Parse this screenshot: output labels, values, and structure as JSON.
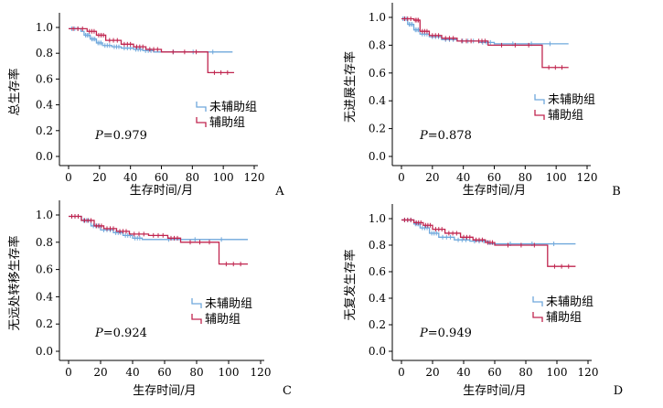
{
  "chart_data": [
    {
      "panel": "A",
      "type": "line",
      "ylabel": "总生存率",
      "xlabel": "生存时间/月",
      "xlim": [
        0,
        120
      ],
      "ylim": [
        0,
        1
      ],
      "xticks": [
        "0",
        "20",
        "40",
        "60",
        "80",
        "100",
        "120"
      ],
      "yticks": [
        "0.0",
        "0.2",
        "0.4",
        "0.6",
        "0.8",
        "1.0"
      ],
      "pvalue": "P=0.979",
      "series": [
        {
          "name": "未辅助组",
          "color": "#6fa8dc",
          "x": [
            0,
            8,
            10,
            14,
            18,
            22,
            28,
            34,
            42,
            48,
            55,
            106
          ],
          "y": [
            0.99,
            0.97,
            0.94,
            0.91,
            0.88,
            0.86,
            0.85,
            0.84,
            0.83,
            0.82,
            0.81,
            0.81
          ]
        },
        {
          "name": "辅助组",
          "color": "#c0254f",
          "x": [
            0,
            12,
            18,
            24,
            34,
            42,
            50,
            60,
            90,
            107
          ],
          "y": [
            0.99,
            0.97,
            0.94,
            0.9,
            0.87,
            0.85,
            0.83,
            0.81,
            0.65,
            0.65
          ]
        }
      ]
    },
    {
      "panel": "B",
      "type": "line",
      "ylabel": "无进展生存率",
      "xlabel": "生存时间/月",
      "xlim": [
        0,
        120
      ],
      "ylim": [
        0,
        1
      ],
      "xticks": [
        "0",
        "20",
        "40",
        "60",
        "80",
        "100",
        "120"
      ],
      "yticks": [
        "0.0",
        "0.2",
        "0.4",
        "0.6",
        "0.8",
        "1.0"
      ],
      "pvalue": "P=0.878",
      "series": [
        {
          "name": "未辅助组",
          "color": "#6fa8dc",
          "x": [
            0,
            4,
            8,
            12,
            18,
            26,
            36,
            50,
            60,
            108
          ],
          "y": [
            0.99,
            0.95,
            0.91,
            0.88,
            0.86,
            0.84,
            0.83,
            0.82,
            0.81,
            0.81
          ]
        },
        {
          "name": "辅助组",
          "color": "#c0254f",
          "x": [
            0,
            8,
            12,
            18,
            26,
            36,
            48,
            56,
            91,
            108
          ],
          "y": [
            0.99,
            0.98,
            0.9,
            0.87,
            0.85,
            0.83,
            0.83,
            0.8,
            0.64,
            0.64
          ]
        }
      ]
    },
    {
      "panel": "C",
      "type": "line",
      "ylabel": "无远处转移生存率",
      "xlabel": "生存时间/月",
      "xlim": [
        0,
        120
      ],
      "ylim": [
        0,
        1
      ],
      "xticks": [
        "0",
        "20",
        "40",
        "60",
        "80",
        "100",
        "120"
      ],
      "yticks": [
        "0.0",
        "0.2",
        "0.4",
        "0.6",
        "0.8",
        "1.0"
      ],
      "pvalue": "P=0.924",
      "series": [
        {
          "name": "未辅助组",
          "color": "#6fa8dc",
          "x": [
            0,
            8,
            14,
            20,
            28,
            34,
            40,
            46,
            112
          ],
          "y": [
            0.99,
            0.96,
            0.92,
            0.89,
            0.87,
            0.85,
            0.83,
            0.82,
            0.82
          ]
        },
        {
          "name": "辅助组",
          "color": "#c0254f",
          "x": [
            0,
            8,
            16,
            22,
            30,
            38,
            50,
            62,
            70,
            94,
            112
          ],
          "y": [
            0.99,
            0.96,
            0.92,
            0.9,
            0.88,
            0.86,
            0.85,
            0.83,
            0.8,
            0.64,
            0.64
          ]
        }
      ]
    },
    {
      "panel": "D",
      "type": "line",
      "ylabel": "无复发生存率",
      "xlabel": "生存时间/月",
      "xlim": [
        0,
        120
      ],
      "ylim": [
        0,
        1
      ],
      "xticks": [
        "0",
        "20",
        "40",
        "60",
        "80",
        "100",
        "120"
      ],
      "yticks": [
        "0.0",
        "0.2",
        "0.4",
        "0.6",
        "0.8",
        "1.0"
      ],
      "pvalue": "P=0.949",
      "series": [
        {
          "name": "未辅助组",
          "color": "#6fa8dc",
          "x": [
            0,
            8,
            12,
            18,
            24,
            34,
            44,
            56,
            112
          ],
          "y": [
            0.99,
            0.96,
            0.93,
            0.89,
            0.86,
            0.84,
            0.83,
            0.81,
            0.81
          ]
        },
        {
          "name": "辅助组",
          "color": "#c0254f",
          "x": [
            0,
            8,
            14,
            20,
            28,
            38,
            46,
            54,
            60,
            94,
            112
          ],
          "y": [
            0.99,
            0.97,
            0.95,
            0.92,
            0.89,
            0.86,
            0.84,
            0.82,
            0.8,
            0.64,
            0.64
          ]
        }
      ]
    }
  ]
}
